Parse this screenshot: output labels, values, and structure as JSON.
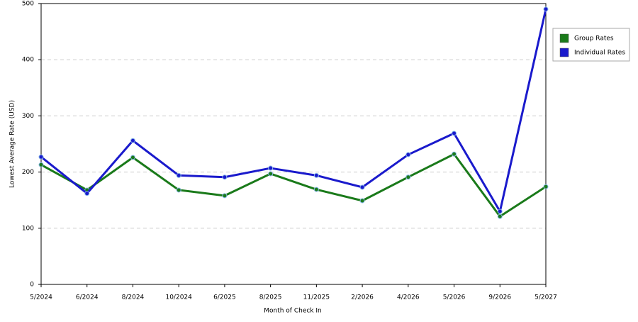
{
  "chart_data": {
    "type": "line",
    "x_label": "Month of Check In",
    "y_label": "Lowest Average Rate (USD)",
    "categories": [
      "5/2024",
      "6/2024",
      "8/2024",
      "10/2024",
      "6/2025",
      "8/2025",
      "11/2025",
      "2/2026",
      "4/2026",
      "5/2026",
      "9/2026",
      "5/2027"
    ],
    "series": [
      {
        "name": "Group Rates",
        "color": "#1a7a1a",
        "values": [
          213,
          168,
          226,
          168,
          158,
          197,
          169,
          149,
          191,
          232,
          121,
          174
        ]
      },
      {
        "name": "Individual Rates",
        "color": "#1a1acc",
        "values": [
          227,
          162,
          256,
          194,
          191,
          207,
          194,
          173,
          231,
          269,
          130,
          490
        ]
      }
    ],
    "ylim": [
      0,
      500
    ],
    "yticks": [
      0,
      100,
      200,
      300,
      400,
      500
    ],
    "grid": true,
    "legend": "right"
  }
}
